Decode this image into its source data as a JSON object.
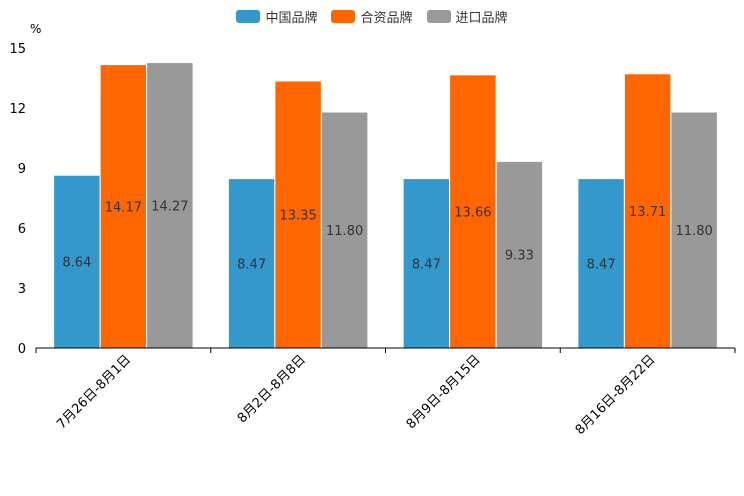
{
  "chart_data": {
    "type": "bar",
    "unit": "%",
    "categories": [
      "7月26日-8月1日",
      "8月2日-8月8日",
      "8月9日-8月15日",
      "8月16日-8月22日"
    ],
    "series": [
      {
        "name": "中国品牌",
        "color": "#3399cc",
        "values": [
          8.64,
          8.47,
          8.47,
          8.47
        ],
        "labels": [
          "8.64",
          "8.47",
          "8.47",
          "8.47"
        ]
      },
      {
        "name": "合资品牌",
        "color": "#ff6600",
        "values": [
          14.17,
          13.35,
          13.66,
          13.71
        ],
        "labels": [
          "14.17",
          "13.35",
          "13.66",
          "13.71"
        ]
      },
      {
        "name": "进口品牌",
        "color": "#999999",
        "values": [
          14.27,
          11.8,
          9.33,
          11.8
        ],
        "labels": [
          "14.27",
          "11.80",
          "9.33",
          "11.80"
        ]
      }
    ],
    "yticks": [
      "0",
      "3",
      "6",
      "9",
      "12",
      "15"
    ],
    "ylim": [
      0,
      15
    ],
    "legend_position": "top-center",
    "grid": false
  }
}
